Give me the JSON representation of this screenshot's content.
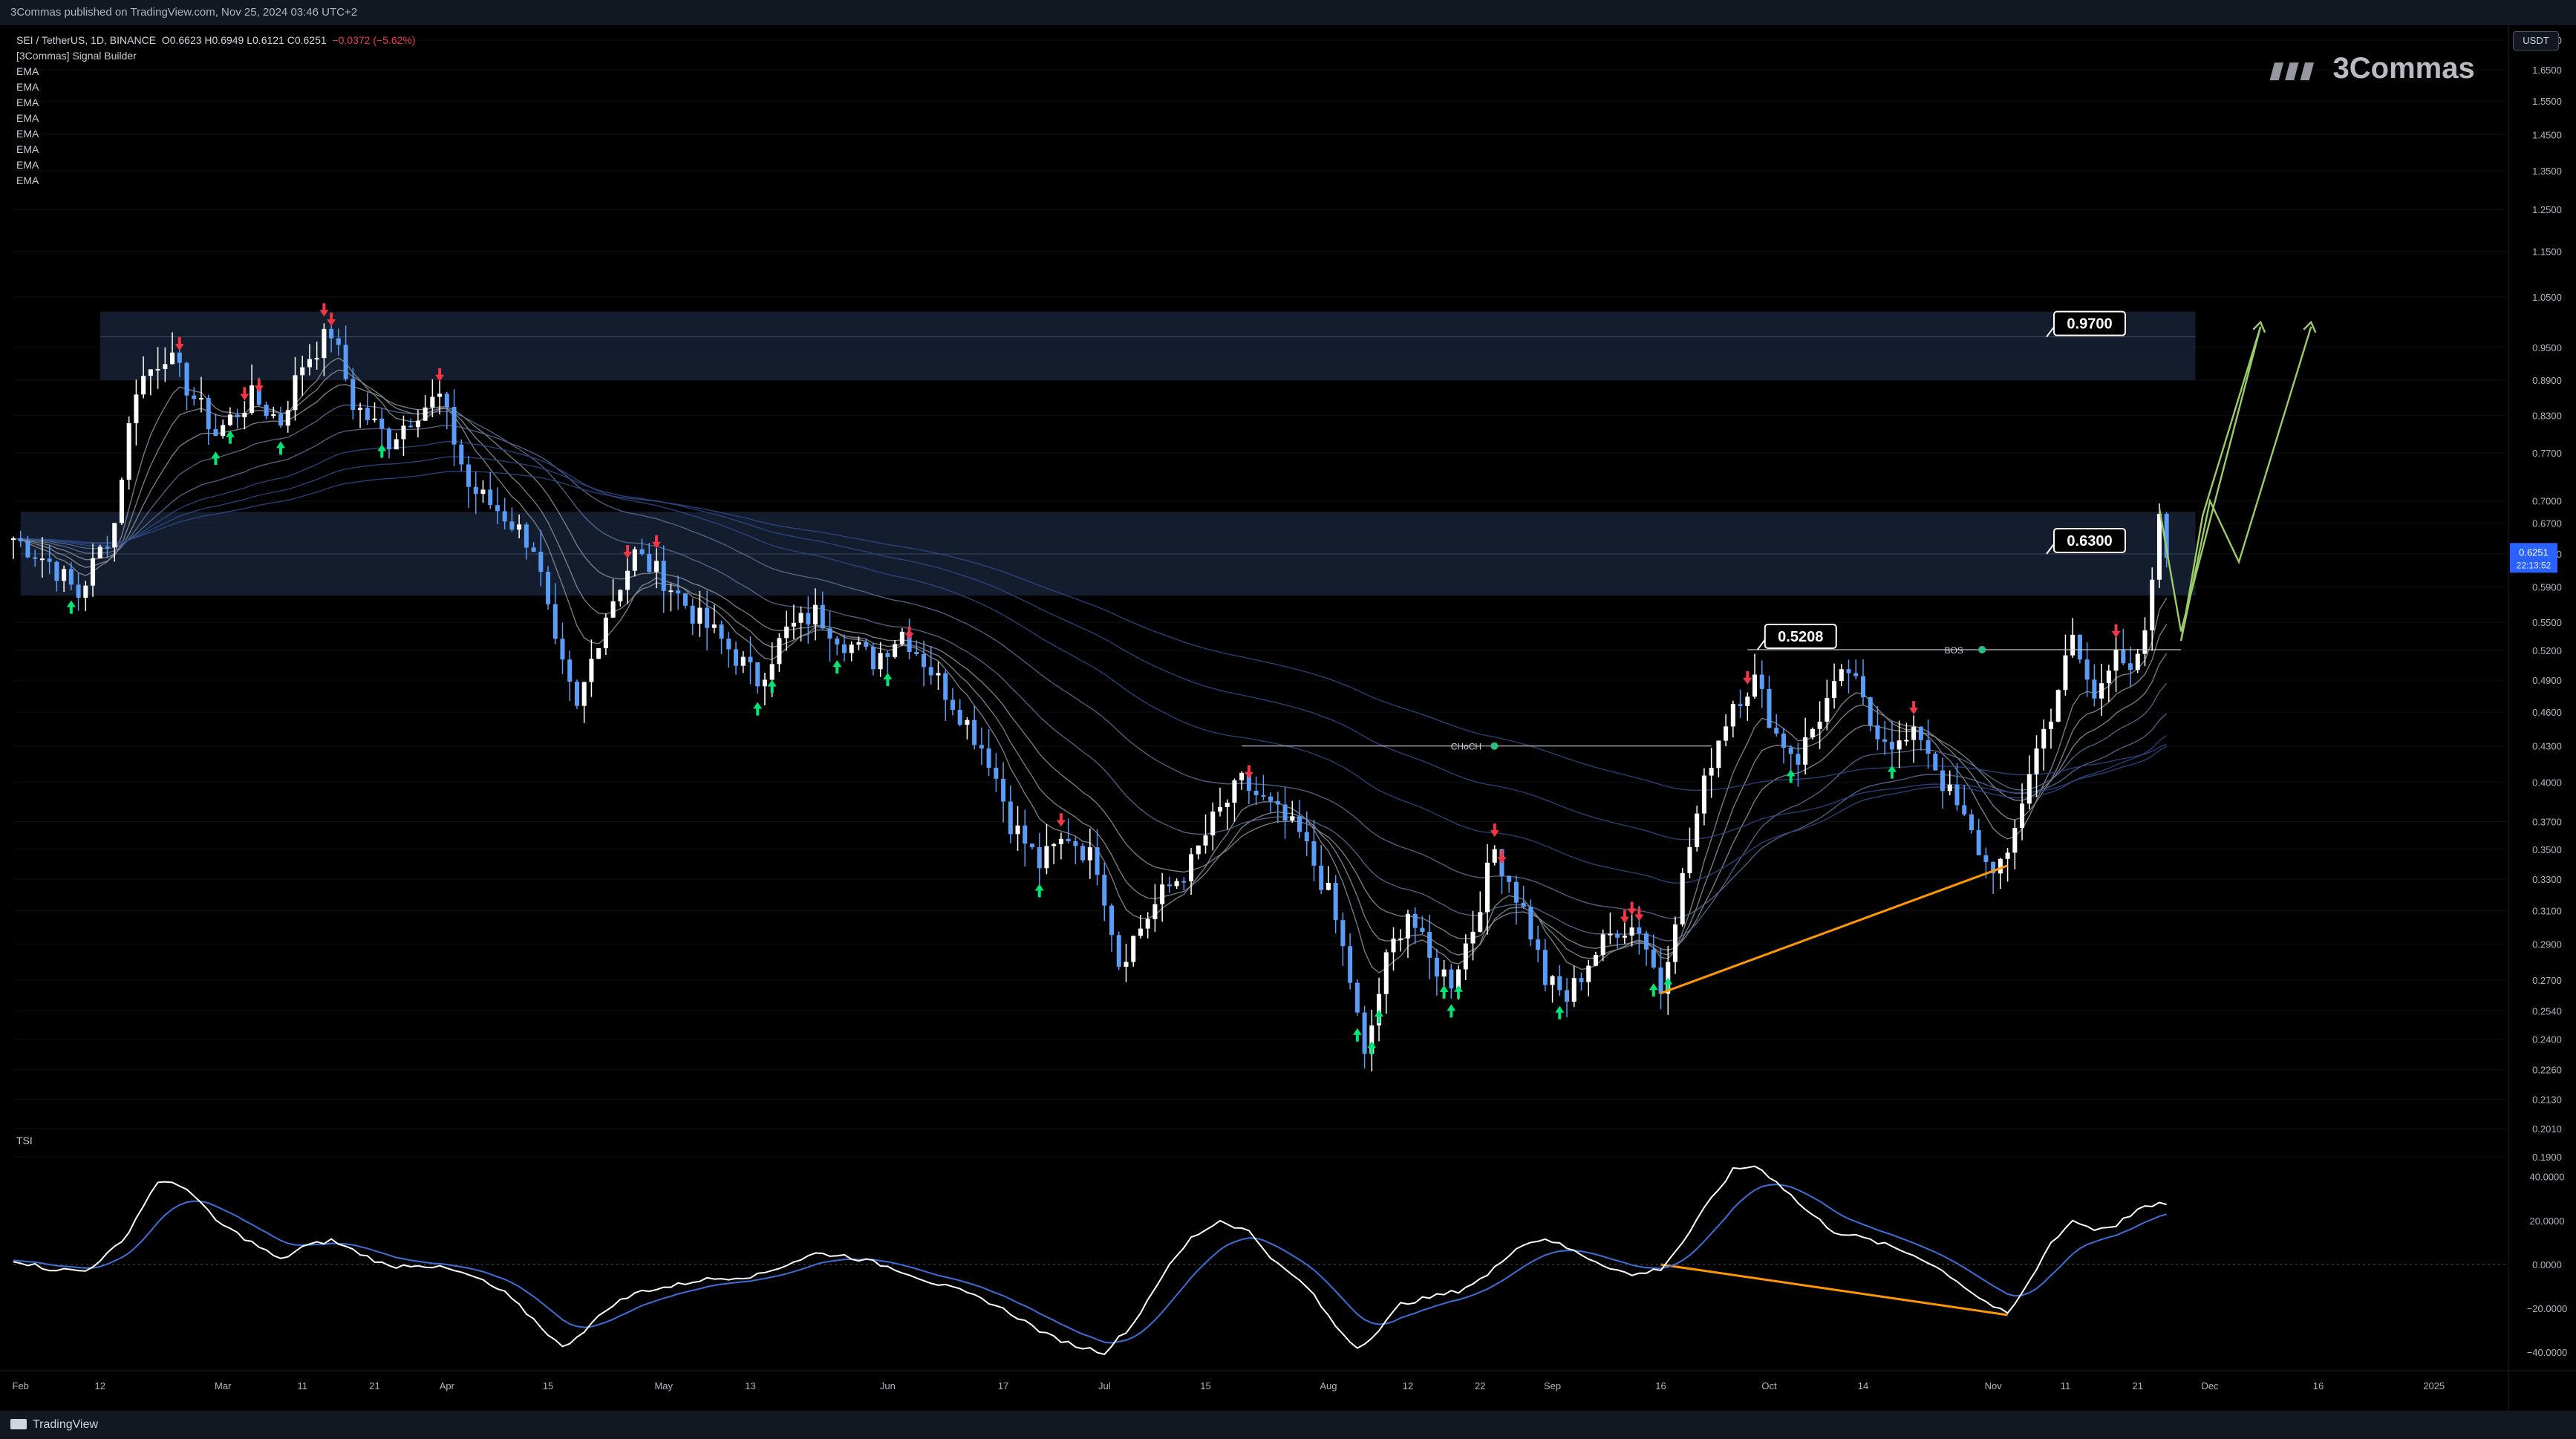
{
  "header": {
    "publisher": "3Commas published on TradingView.com, Nov 25, 2024 03:46 UTC+2"
  },
  "legend": {
    "symbol": "SEI / TetherUS, 1D, BINANCE",
    "ohlc": "O0.6623  H0.6949  L0.6121  C0.6251",
    "change": "−0.0372 (−5.62%)",
    "indicator": "[3Commas] Signal Builder",
    "ema_labels": [
      "EMA",
      "EMA",
      "EMA",
      "EMA",
      "EMA",
      "EMA",
      "EMA",
      "EMA"
    ]
  },
  "currency_badge": "USDT",
  "logo_text": "3Commas",
  "tsi_label": "TSI",
  "footer": {
    "brand": "TradingView"
  },
  "colors": {
    "background": "#000000",
    "bull_candle": "#ffffff",
    "bear_candle": "#5b9cf6",
    "zone_fill": "#1b2a40",
    "divergence": "#ff9800",
    "projection": "#9ccc65",
    "tsi_main": "#ffffff",
    "tsi_signal": "#3d6fd8",
    "price_label_bg": "#2962ff"
  },
  "chart_data": {
    "type": "candlestick",
    "symbol": "SEI/USDT",
    "interval": "1D",
    "y_scale": "log",
    "ylim": [
      0.185,
      1.75
    ],
    "price_ticks": [
      "1.7500",
      "1.6500",
      "1.5500",
      "1.4500",
      "1.3500",
      "1.2500",
      "1.1500",
      "1.0500",
      "0.9500",
      "0.8900",
      "0.8300",
      "0.7700",
      "0.7000",
      "0.6700",
      "0.6300",
      "0.5900",
      "0.5500",
      "0.5200",
      "0.4900",
      "0.4600",
      "0.4300",
      "0.4000",
      "0.3700",
      "0.3500",
      "0.3300",
      "0.3100",
      "0.2900",
      "0.2700",
      "0.2540",
      "0.2400",
      "0.2260",
      "0.2130",
      "0.2010",
      "0.1900"
    ],
    "x_ticks": [
      {
        "label": "Feb",
        "day": 1
      },
      {
        "label": "12",
        "day": 12
      },
      {
        "label": "Mar",
        "day": 29
      },
      {
        "label": "11",
        "day": 40
      },
      {
        "label": "21",
        "day": 50
      },
      {
        "label": "Apr",
        "day": 60
      },
      {
        "label": "15",
        "day": 74
      },
      {
        "label": "May",
        "day": 90
      },
      {
        "label": "13",
        "day": 102
      },
      {
        "label": "Jun",
        "day": 121
      },
      {
        "label": "17",
        "day": 137
      },
      {
        "label": "Jul",
        "day": 151
      },
      {
        "label": "15",
        "day": 165
      },
      {
        "label": "Aug",
        "day": 182
      },
      {
        "label": "12",
        "day": 193
      },
      {
        "label": "22",
        "day": 203
      },
      {
        "label": "Sep",
        "day": 213
      },
      {
        "label": "16",
        "day": 228
      },
      {
        "label": "Oct",
        "day": 243
      },
      {
        "label": "14",
        "day": 256
      },
      {
        "label": "Nov",
        "day": 274
      },
      {
        "label": "11",
        "day": 284
      },
      {
        "label": "21",
        "day": 294
      },
      {
        "label": "Dec",
        "day": 304
      },
      {
        "label": "16",
        "day": 319
      },
      {
        "label": "2025",
        "day": 335
      }
    ],
    "zones": [
      {
        "top": 1.02,
        "bottom": 0.89,
        "mid": 0.97,
        "start_day": 12,
        "end_day": 302
      },
      {
        "top": 0.685,
        "bottom": 0.58,
        "mid": 0.63,
        "start_day": 1,
        "end_day": 302
      }
    ],
    "level_labels": [
      {
        "text": "0.9700",
        "value": 0.97,
        "day": 282
      },
      {
        "text": "0.6300",
        "value": 0.63,
        "day": 282
      },
      {
        "text": "0.5208",
        "value": 0.5208,
        "day": 242
      }
    ],
    "structure_lines": [
      {
        "text": "CHoCH",
        "value": 0.43,
        "start_day": 170,
        "end_day": 235
      },
      {
        "text": "BOS",
        "value": 0.5208,
        "start_day": 240,
        "end_day": 300
      }
    ],
    "current_price": {
      "value": "0.6251",
      "countdown": "22:13:52"
    },
    "price_divergence": [
      [
        228,
        0.263
      ],
      [
        276,
        0.339
      ]
    ],
    "tsi_divergence": [
      [
        228,
        0
      ],
      [
        276,
        -23
      ]
    ],
    "projection_path": [
      [
        297,
        0.69
      ],
      [
        300,
        0.54
      ],
      [
        311,
        0.99
      ],
      [
        303,
        0.68
      ],
      [
        300,
        0.53
      ]
    ],
    "tsi_ylim": [
      -45,
      47
    ],
    "tsi_ticks": [
      "40.0000",
      "20.0000",
      "0.0000",
      "−20.0000",
      "−40.0000"
    ],
    "anchors": [
      [
        0,
        0.65
      ],
      [
        5,
        0.62
      ],
      [
        9,
        0.58
      ],
      [
        14,
        0.67
      ],
      [
        17,
        0.88
      ],
      [
        21,
        0.94
      ],
      [
        25,
        0.86
      ],
      [
        28,
        0.8
      ],
      [
        33,
        0.86
      ],
      [
        37,
        0.82
      ],
      [
        40,
        0.92
      ],
      [
        44,
        0.98
      ],
      [
        47,
        0.85
      ],
      [
        52,
        0.79
      ],
      [
        56,
        0.84
      ],
      [
        59,
        0.86
      ],
      [
        63,
        0.72
      ],
      [
        68,
        0.68
      ],
      [
        72,
        0.64
      ],
      [
        75,
        0.52
      ],
      [
        78,
        0.46
      ],
      [
        82,
        0.56
      ],
      [
        86,
        0.63
      ],
      [
        90,
        0.6
      ],
      [
        94,
        0.56
      ],
      [
        98,
        0.53
      ],
      [
        103,
        0.49
      ],
      [
        107,
        0.54
      ],
      [
        111,
        0.56
      ],
      [
        115,
        0.53
      ],
      [
        119,
        0.51
      ],
      [
        123,
        0.54
      ],
      [
        127,
        0.5
      ],
      [
        131,
        0.46
      ],
      [
        135,
        0.42
      ],
      [
        138,
        0.37
      ],
      [
        142,
        0.34
      ],
      [
        146,
        0.36
      ],
      [
        150,
        0.34
      ],
      [
        153,
        0.28
      ],
      [
        156,
        0.3
      ],
      [
        159,
        0.32
      ],
      [
        163,
        0.34
      ],
      [
        166,
        0.37
      ],
      [
        170,
        0.4
      ],
      [
        174,
        0.38
      ],
      [
        178,
        0.36
      ],
      [
        182,
        0.32
      ],
      [
        185,
        0.27
      ],
      [
        187,
        0.23
      ],
      [
        190,
        0.28
      ],
      [
        193,
        0.31
      ],
      [
        196,
        0.28
      ],
      [
        199,
        0.27
      ],
      [
        202,
        0.3
      ],
      [
        205,
        0.35
      ],
      [
        209,
        0.31
      ],
      [
        212,
        0.27
      ],
      [
        215,
        0.26
      ],
      [
        218,
        0.28
      ],
      [
        222,
        0.3
      ],
      [
        225,
        0.3
      ],
      [
        228,
        0.265
      ],
      [
        231,
        0.33
      ],
      [
        235,
        0.42
      ],
      [
        238,
        0.47
      ],
      [
        241,
        0.49
      ],
      [
        244,
        0.44
      ],
      [
        247,
        0.42
      ],
      [
        251,
        0.47
      ],
      [
        254,
        0.5
      ],
      [
        257,
        0.45
      ],
      [
        261,
        0.43
      ],
      [
        264,
        0.44
      ],
      [
        267,
        0.4
      ],
      [
        270,
        0.37
      ],
      [
        273,
        0.34
      ],
      [
        276,
        0.34
      ],
      [
        279,
        0.41
      ],
      [
        282,
        0.46
      ],
      [
        285,
        0.53
      ],
      [
        288,
        0.47
      ],
      [
        291,
        0.53
      ],
      [
        293,
        0.49
      ],
      [
        295,
        0.53
      ],
      [
        297,
        0.67
      ],
      [
        298,
        0.6251
      ]
    ],
    "tsi_anchors": [
      [
        0,
        2
      ],
      [
        5,
        -2
      ],
      [
        10,
        -3
      ],
      [
        15,
        10
      ],
      [
        20,
        38
      ],
      [
        24,
        35
      ],
      [
        28,
        20
      ],
      [
        33,
        10
      ],
      [
        37,
        2
      ],
      [
        40,
        8
      ],
      [
        44,
        11
      ],
      [
        48,
        5
      ],
      [
        52,
        -1
      ],
      [
        56,
        0
      ],
      [
        60,
        -2
      ],
      [
        64,
        -6
      ],
      [
        68,
        -13
      ],
      [
        72,
        -25
      ],
      [
        76,
        -38
      ],
      [
        79,
        -30
      ],
      [
        83,
        -18
      ],
      [
        87,
        -12
      ],
      [
        91,
        -10
      ],
      [
        95,
        -7
      ],
      [
        99,
        -6
      ],
      [
        103,
        -5
      ],
      [
        107,
        0
      ],
      [
        111,
        5
      ],
      [
        115,
        4
      ],
      [
        119,
        1
      ],
      [
        123,
        -3
      ],
      [
        127,
        -8
      ],
      [
        131,
        -12
      ],
      [
        135,
        -17
      ],
      [
        139,
        -24
      ],
      [
        143,
        -32
      ],
      [
        147,
        -37
      ],
      [
        151,
        -40
      ],
      [
        155,
        -27
      ],
      [
        159,
        -5
      ],
      [
        163,
        12
      ],
      [
        167,
        20
      ],
      [
        171,
        15
      ],
      [
        175,
        0
      ],
      [
        179,
        -10
      ],
      [
        183,
        -28
      ],
      [
        186,
        -38
      ],
      [
        189,
        -30
      ],
      [
        192,
        -18
      ],
      [
        196,
        -15
      ],
      [
        200,
        -12
      ],
      [
        204,
        -5
      ],
      [
        208,
        8
      ],
      [
        212,
        12
      ],
      [
        216,
        6
      ],
      [
        220,
        0
      ],
      [
        224,
        -5
      ],
      [
        228,
        -2
      ],
      [
        231,
        10
      ],
      [
        235,
        30
      ],
      [
        238,
        43
      ],
      [
        241,
        45
      ],
      [
        244,
        38
      ],
      [
        248,
        25
      ],
      [
        252,
        15
      ],
      [
        256,
        12
      ],
      [
        260,
        8
      ],
      [
        264,
        3
      ],
      [
        268,
        -5
      ],
      [
        272,
        -15
      ],
      [
        276,
        -23
      ],
      [
        279,
        -8
      ],
      [
        282,
        10
      ],
      [
        285,
        20
      ],
      [
        288,
        16
      ],
      [
        291,
        18
      ],
      [
        294,
        25
      ],
      [
        298,
        28
      ]
    ]
  }
}
